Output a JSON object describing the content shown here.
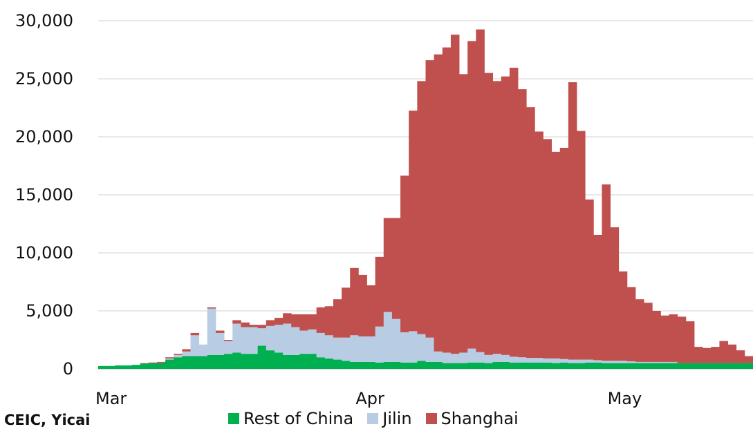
{
  "chart_data": {
    "type": "bar",
    "stacked": true,
    "title": "",
    "xlabel": "",
    "ylabel": "",
    "ylim": [
      0,
      30000
    ],
    "yticks": [
      "0",
      "5,000",
      "10,000",
      "15,000",
      "20,000",
      "25,000",
      "30,000"
    ],
    "yticks_values": [
      0,
      5000,
      10000,
      15000,
      20000,
      25000,
      30000
    ],
    "xtick_labels": [
      {
        "label": "Mar",
        "date": "2022-03-01"
      },
      {
        "label": "Apr",
        "date": "2022-04-01"
      },
      {
        "label": "May",
        "date": "2022-05-01"
      }
    ],
    "grid": true,
    "legend_position": "bottom",
    "x": [
      "2022-03-01",
      "2022-03-02",
      "2022-03-03",
      "2022-03-04",
      "2022-03-05",
      "2022-03-06",
      "2022-03-07",
      "2022-03-08",
      "2022-03-09",
      "2022-03-10",
      "2022-03-11",
      "2022-03-12",
      "2022-03-13",
      "2022-03-14",
      "2022-03-15",
      "2022-03-16",
      "2022-03-17",
      "2022-03-18",
      "2022-03-19",
      "2022-03-20",
      "2022-03-21",
      "2022-03-22",
      "2022-03-23",
      "2022-03-24",
      "2022-03-25",
      "2022-03-26",
      "2022-03-27",
      "2022-03-28",
      "2022-03-29",
      "2022-03-30",
      "2022-03-31",
      "2022-04-01",
      "2022-04-02",
      "2022-04-03",
      "2022-04-04",
      "2022-04-05",
      "2022-04-06",
      "2022-04-07",
      "2022-04-08",
      "2022-04-09",
      "2022-04-10",
      "2022-04-11",
      "2022-04-12",
      "2022-04-13",
      "2022-04-14",
      "2022-04-15",
      "2022-04-16",
      "2022-04-17",
      "2022-04-18",
      "2022-04-19",
      "2022-04-20",
      "2022-04-21",
      "2022-04-22",
      "2022-04-23",
      "2022-04-24",
      "2022-04-25",
      "2022-04-26",
      "2022-04-27",
      "2022-04-28",
      "2022-04-29",
      "2022-04-30",
      "2022-05-01",
      "2022-05-02",
      "2022-05-03",
      "2022-05-04",
      "2022-05-05",
      "2022-05-06",
      "2022-05-07",
      "2022-05-08",
      "2022-05-09",
      "2022-05-10",
      "2022-05-11",
      "2022-05-12",
      "2022-05-13",
      "2022-05-14",
      "2022-05-15",
      "2022-05-16",
      "2022-05-17"
    ],
    "series": [
      {
        "name": "Rest of China",
        "color": "#00b050",
        "values": [
          250,
          250,
          300,
          300,
          350,
          450,
          500,
          500,
          800,
          1000,
          1100,
          1100,
          1100,
          1200,
          1200,
          1300,
          1400,
          1300,
          1300,
          2000,
          1600,
          1400,
          1200,
          1200,
          1300,
          1300,
          1000,
          900,
          800,
          700,
          600,
          600,
          600,
          550,
          600,
          600,
          550,
          550,
          700,
          600,
          600,
          500,
          500,
          500,
          550,
          550,
          500,
          600,
          600,
          550,
          550,
          550,
          550,
          550,
          500,
          550,
          500,
          500,
          550,
          550,
          500,
          500,
          500,
          500,
          500,
          500,
          500,
          500,
          500,
          500,
          500,
          500,
          500,
          500,
          500,
          500,
          500,
          500
        ]
      },
      {
        "name": "Jilin",
        "color": "#b8cce4",
        "values": [
          0,
          0,
          0,
          0,
          0,
          0,
          0,
          0,
          100,
          200,
          400,
          1800,
          1000,
          4000,
          1900,
          1100,
          2500,
          2300,
          2300,
          1500,
          2100,
          2400,
          2700,
          2400,
          2000,
          2100,
          2100,
          2000,
          1900,
          2000,
          2300,
          2200,
          2200,
          3100,
          4300,
          3700,
          2600,
          2700,
          2300,
          2100,
          900,
          900,
          800,
          900,
          1200,
          900,
          700,
          700,
          600,
          500,
          450,
          400,
          400,
          350,
          400,
          300,
          300,
          300,
          250,
          200,
          200,
          200,
          200,
          150,
          100,
          100,
          100,
          100,
          100,
          0,
          0,
          0,
          0,
          0,
          0,
          0,
          0,
          0
        ]
      },
      {
        "name": "Shanghai",
        "color": "#c0504d",
        "values": [
          0,
          0,
          0,
          0,
          0,
          50,
          50,
          100,
          100,
          100,
          200,
          200,
          0,
          100,
          200,
          100,
          300,
          400,
          200,
          300,
          500,
          600,
          900,
          1100,
          1400,
          1300,
          2200,
          2500,
          3300,
          4300,
          5800,
          5300,
          4400,
          6000,
          8100,
          8700,
          13500,
          19000,
          21800,
          23900,
          25600,
          26300,
          27500,
          24000,
          26500,
          27800,
          24300,
          23500,
          24000,
          24900,
          23100,
          21600,
          19500,
          18900,
          17800,
          18200,
          23900,
          19700,
          13800,
          10800,
          15200,
          11500,
          7700,
          6400,
          5400,
          5100,
          4400,
          4000,
          4100,
          4000,
          3600,
          1400,
          1300,
          1400,
          1900,
          1600,
          1100,
          600
        ]
      }
    ],
    "source_note": "CEIC, Yicai"
  }
}
